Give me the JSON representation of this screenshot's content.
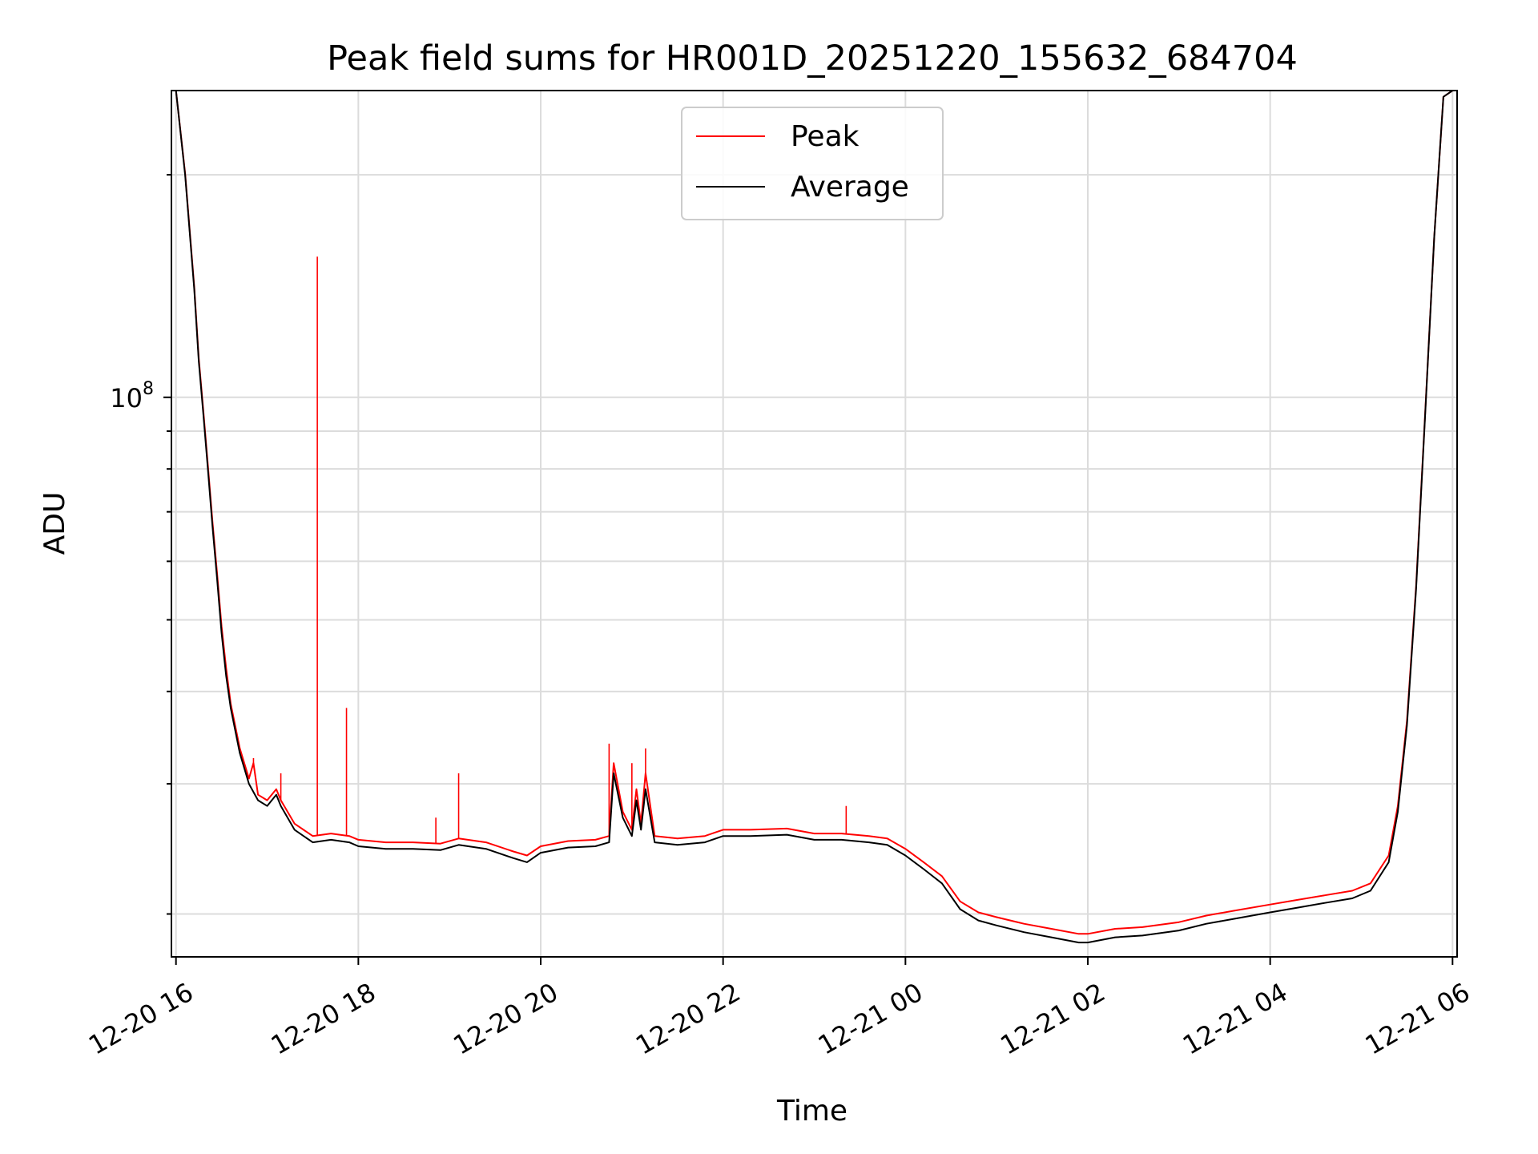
{
  "chart_data": {
    "type": "line",
    "title": "Peak field sums for HR001D_20251220_155632_684704",
    "xlabel": "Time",
    "ylabel": "ADU",
    "yscale": "log",
    "ylim": [
      17500000,
      260000000
    ],
    "ytick_labels": [
      {
        "base": "10",
        "exponent": "8",
        "value": 100000000
      }
    ],
    "xlim_hours": [
      -0.05,
      14.05
    ],
    "x_ticks": [
      {
        "label": "12-20 16",
        "hours": 0
      },
      {
        "label": "12-20 18",
        "hours": 2
      },
      {
        "label": "12-20 20",
        "hours": 4
      },
      {
        "label": "12-20 22",
        "hours": 6
      },
      {
        "label": "12-21 00",
        "hours": 8
      },
      {
        "label": "12-21 02",
        "hours": 10
      },
      {
        "label": "12-21 04",
        "hours": 12
      },
      {
        "label": "12-21 06",
        "hours": 14
      }
    ],
    "grid": true,
    "legend": {
      "placement": "upper-center",
      "entries": [
        {
          "name": "Peak",
          "color": "#ff0000"
        },
        {
          "name": "Average",
          "color": "#000000"
        }
      ]
    },
    "series": [
      {
        "name": "Average",
        "color": "#000000",
        "points": [
          [
            0.0,
            260000000
          ],
          [
            0.1,
            200000000
          ],
          [
            0.2,
            140000000
          ],
          [
            0.25,
            112000000
          ],
          [
            0.3,
            95000000
          ],
          [
            0.35,
            80000000
          ],
          [
            0.4,
            67000000
          ],
          [
            0.45,
            57000000
          ],
          [
            0.5,
            48000000
          ],
          [
            0.55,
            42000000
          ],
          [
            0.6,
            38000000
          ],
          [
            0.7,
            33000000
          ],
          [
            0.8,
            30000000
          ],
          [
            0.9,
            28500000
          ],
          [
            1.0,
            28000000
          ],
          [
            1.1,
            29000000
          ],
          [
            1.15,
            28000000
          ],
          [
            1.3,
            26000000
          ],
          [
            1.5,
            25000000
          ],
          [
            1.7,
            25200000
          ],
          [
            1.9,
            25000000
          ],
          [
            2.0,
            24700000
          ],
          [
            2.3,
            24500000
          ],
          [
            2.6,
            24500000
          ],
          [
            2.9,
            24400000
          ],
          [
            3.1,
            24800000
          ],
          [
            3.4,
            24500000
          ],
          [
            3.7,
            23800000
          ],
          [
            3.85,
            23500000
          ],
          [
            4.0,
            24200000
          ],
          [
            4.3,
            24600000
          ],
          [
            4.6,
            24700000
          ],
          [
            4.75,
            25000000
          ],
          [
            4.8,
            31000000
          ],
          [
            4.9,
            27000000
          ],
          [
            5.0,
            25500000
          ],
          [
            5.05,
            28500000
          ],
          [
            5.1,
            26000000
          ],
          [
            5.15,
            29500000
          ],
          [
            5.25,
            25000000
          ],
          [
            5.5,
            24800000
          ],
          [
            5.8,
            25000000
          ],
          [
            6.0,
            25500000
          ],
          [
            6.3,
            25500000
          ],
          [
            6.7,
            25600000
          ],
          [
            7.0,
            25200000
          ],
          [
            7.3,
            25200000
          ],
          [
            7.6,
            25000000
          ],
          [
            7.8,
            24800000
          ],
          [
            8.0,
            24000000
          ],
          [
            8.2,
            23000000
          ],
          [
            8.4,
            22000000
          ],
          [
            8.6,
            20300000
          ],
          [
            8.8,
            19600000
          ],
          [
            9.0,
            19300000
          ],
          [
            9.3,
            18900000
          ],
          [
            9.6,
            18600000
          ],
          [
            9.9,
            18300000
          ],
          [
            10.0,
            18300000
          ],
          [
            10.3,
            18600000
          ],
          [
            10.6,
            18700000
          ],
          [
            11.0,
            19000000
          ],
          [
            11.3,
            19400000
          ],
          [
            11.6,
            19700000
          ],
          [
            12.0,
            20100000
          ],
          [
            12.3,
            20400000
          ],
          [
            12.6,
            20700000
          ],
          [
            12.9,
            21000000
          ],
          [
            13.1,
            21500000
          ],
          [
            13.3,
            23500000
          ],
          [
            13.4,
            27500000
          ],
          [
            13.5,
            36000000
          ],
          [
            13.6,
            55000000
          ],
          [
            13.7,
            95000000
          ],
          [
            13.8,
            165000000
          ],
          [
            13.9,
            255000000
          ],
          [
            14.0,
            260000000
          ]
        ]
      },
      {
        "name": "Peak",
        "color": "#ff0000",
        "points": [
          [
            0.0,
            260000000
          ],
          [
            0.1,
            201000000
          ],
          [
            0.2,
            141000000
          ],
          [
            0.25,
            113000000
          ],
          [
            0.3,
            96000000
          ],
          [
            0.35,
            81000000
          ],
          [
            0.4,
            68000000
          ],
          [
            0.45,
            58000000
          ],
          [
            0.5,
            49000000
          ],
          [
            0.55,
            43000000
          ],
          [
            0.6,
            38500000
          ],
          [
            0.7,
            33500000
          ],
          [
            0.8,
            30500000
          ],
          [
            0.85,
            32000000
          ],
          [
            0.9,
            29000000
          ],
          [
            1.0,
            28500000
          ],
          [
            1.1,
            29500000
          ],
          [
            1.15,
            28500000
          ],
          [
            1.3,
            26500000
          ],
          [
            1.5,
            25500000
          ],
          [
            1.7,
            25700000
          ],
          [
            1.9,
            25500000
          ],
          [
            2.0,
            25200000
          ],
          [
            2.3,
            25000000
          ],
          [
            2.6,
            25000000
          ],
          [
            2.9,
            24900000
          ],
          [
            3.1,
            25300000
          ],
          [
            3.4,
            25000000
          ],
          [
            3.7,
            24300000
          ],
          [
            3.85,
            24000000
          ],
          [
            4.0,
            24700000
          ],
          [
            4.3,
            25100000
          ],
          [
            4.6,
            25200000
          ],
          [
            4.75,
            25500000
          ],
          [
            4.8,
            32000000
          ],
          [
            4.9,
            27500000
          ],
          [
            5.0,
            26000000
          ],
          [
            5.05,
            29500000
          ],
          [
            5.1,
            26500000
          ],
          [
            5.15,
            31000000
          ],
          [
            5.25,
            25500000
          ],
          [
            5.5,
            25300000
          ],
          [
            5.8,
            25500000
          ],
          [
            6.0,
            26000000
          ],
          [
            6.3,
            26000000
          ],
          [
            6.7,
            26100000
          ],
          [
            7.0,
            25700000
          ],
          [
            7.3,
            25700000
          ],
          [
            7.6,
            25500000
          ],
          [
            7.8,
            25300000
          ],
          [
            8.0,
            24500000
          ],
          [
            8.2,
            23500000
          ],
          [
            8.4,
            22500000
          ],
          [
            8.6,
            20800000
          ],
          [
            8.8,
            20100000
          ],
          [
            9.0,
            19800000
          ],
          [
            9.3,
            19400000
          ],
          [
            9.6,
            19100000
          ],
          [
            9.9,
            18800000
          ],
          [
            10.0,
            18800000
          ],
          [
            10.3,
            19100000
          ],
          [
            10.6,
            19200000
          ],
          [
            11.0,
            19500000
          ],
          [
            11.3,
            19900000
          ],
          [
            11.6,
            20200000
          ],
          [
            12.0,
            20600000
          ],
          [
            12.3,
            20900000
          ],
          [
            12.6,
            21200000
          ],
          [
            12.9,
            21500000
          ],
          [
            13.1,
            22000000
          ],
          [
            13.3,
            24000000
          ],
          [
            13.4,
            28000000
          ],
          [
            13.5,
            36500000
          ],
          [
            13.6,
            55500000
          ],
          [
            13.7,
            95500000
          ],
          [
            13.8,
            165000000
          ],
          [
            13.9,
            255000000
          ],
          [
            14.0,
            260000000
          ]
        ],
        "spikes": [
          {
            "hours": 0.85,
            "value": 32500000
          },
          {
            "hours": 1.15,
            "value": 31000000
          },
          {
            "hours": 1.55,
            "value": 155000000
          },
          {
            "hours": 1.87,
            "value": 38000000
          },
          {
            "hours": 2.85,
            "value": 27000000
          },
          {
            "hours": 3.1,
            "value": 31000000
          },
          {
            "hours": 4.75,
            "value": 34000000
          },
          {
            "hours": 5.0,
            "value": 32000000
          },
          {
            "hours": 5.15,
            "value": 33500000
          },
          {
            "hours": 7.35,
            "value": 28000000
          }
        ]
      }
    ]
  }
}
